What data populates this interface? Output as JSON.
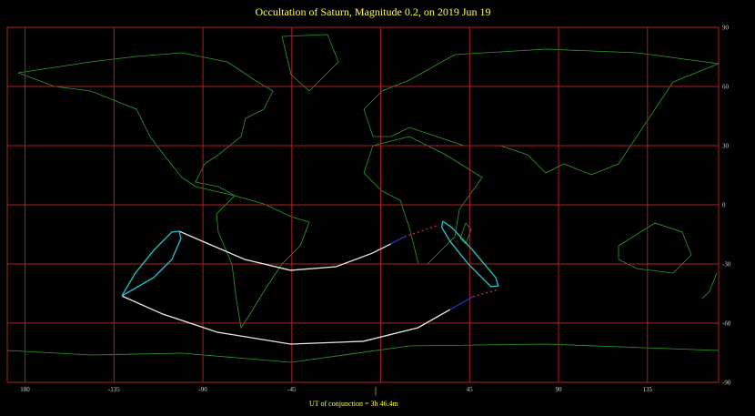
{
  "map": {
    "title": "Occultation  of  Saturn,      Magnitude 0.2,   on  2019 Jun 19",
    "footer": "UT of conjunction = 3h 46.4m",
    "xlim": [
      -189,
      171
    ],
    "ylim": [
      -90,
      90
    ],
    "xticks": [
      {
        "value": -180,
        "label": "180"
      },
      -135,
      -90,
      -45,
      {
        "value": 0,
        "label": null
      },
      45,
      90,
      135
    ],
    "yticks": [
      90,
      60,
      30,
      0,
      -30,
      -60,
      -90
    ],
    "grid": true,
    "grid_color": "#b02020",
    "tracks": [
      {
        "color": "#e8e8e8",
        "dashed": false,
        "lon": [
          -102,
          -87.2,
          -68.8,
          -45.7,
          -22.6,
          -4.2,
          5.1
        ],
        "lat": [
          -13.4,
          -19.8,
          -27.7,
          -33.2,
          -31.4,
          -24.5,
          -19.8
        ]
      },
      {
        "color": "#2030d0",
        "dashed": false,
        "lon": [
          5.1,
          12
        ],
        "lat": [
          -19.8,
          -16.2
        ]
      },
      {
        "color": "#d03030",
        "dashed": true,
        "lon": [
          12,
          29.5
        ],
        "lat": [
          -16.2,
          -10.2
        ]
      },
      {
        "color": "#e8e8e8",
        "dashed": false,
        "lon": [
          -131,
          -110.3,
          -82.6,
          -45.7,
          -8.8,
          18.9,
          35.1
        ],
        "lat": [
          -46.2,
          -55.4,
          -64.6,
          -70.6,
          -69.2,
          -62.3,
          -53.1
        ]
      },
      {
        "color": "#2030d0",
        "dashed": false,
        "lon": [
          35.1,
          46.6
        ],
        "lat": [
          -53.1,
          -46.6
        ]
      },
      {
        "color": "#d03030",
        "dashed": true,
        "lon": [
          46.6,
          59.5
        ],
        "lat": [
          -46.6,
          -42.9
        ]
      },
      {
        "color": "#20c8d0",
        "dashed": false,
        "lon": [
          -131,
          -124.2,
          -114.9,
          -105.7,
          -102,
          -101.1,
          -105.7,
          -114.9,
          -131
        ],
        "lat": [
          -46.2,
          -34.6,
          -23.1,
          -13.8,
          -13.4,
          -17.1,
          -27.7,
          -36.9,
          -46.2
        ]
      },
      {
        "color": "#20c8d0",
        "dashed": false,
        "lon": [
          31.4,
          36,
          46.6,
          58.2,
          59.5,
          55.8,
          44.3,
          35.1,
          30.9,
          31.4
        ],
        "lat": [
          -8.3,
          -11.5,
          -23.1,
          -36.9,
          -41.1,
          -41.5,
          -30,
          -18.5,
          -11.5,
          -8.3
        ]
      }
    ]
  }
}
